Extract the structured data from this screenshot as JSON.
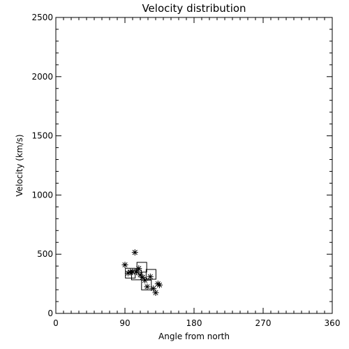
{
  "chart_data": {
    "type": "scatter",
    "title": "Velocity distribution",
    "xlabel": "Angle from north",
    "ylabel": "Velocity (km/s)",
    "xlim": [
      0,
      360
    ],
    "ylim": [
      0,
      2500
    ],
    "xticks": [
      "0",
      "90",
      "180",
      "270",
      "360"
    ],
    "yticks": [
      "0",
      "500",
      "1000",
      "1500",
      "2000",
      "2500"
    ],
    "grid": false,
    "series": [
      {
        "marker": "asterisk",
        "points": [
          {
            "x": 90,
            "y": 410
          },
          {
            "x": 94,
            "y": 340
          },
          {
            "x": 97,
            "y": 350
          },
          {
            "x": 100,
            "y": 350
          },
          {
            "x": 103,
            "y": 515
          },
          {
            "x": 105,
            "y": 350
          },
          {
            "x": 108,
            "y": 380
          },
          {
            "x": 110,
            "y": 325
          },
          {
            "x": 113,
            "y": 305
          },
          {
            "x": 116,
            "y": 280
          },
          {
            "x": 119,
            "y": 225
          },
          {
            "x": 123,
            "y": 310
          },
          {
            "x": 127,
            "y": 210
          },
          {
            "x": 130,
            "y": 175
          },
          {
            "x": 133,
            "y": 250
          },
          {
            "x": 135,
            "y": 240
          }
        ]
      },
      {
        "marker": "box",
        "points": [
          {
            "x": 97,
            "y": 340
          },
          {
            "x": 105,
            "y": 325
          },
          {
            "x": 112,
            "y": 390
          },
          {
            "x": 118,
            "y": 240
          },
          {
            "x": 124,
            "y": 330
          }
        ]
      }
    ]
  }
}
